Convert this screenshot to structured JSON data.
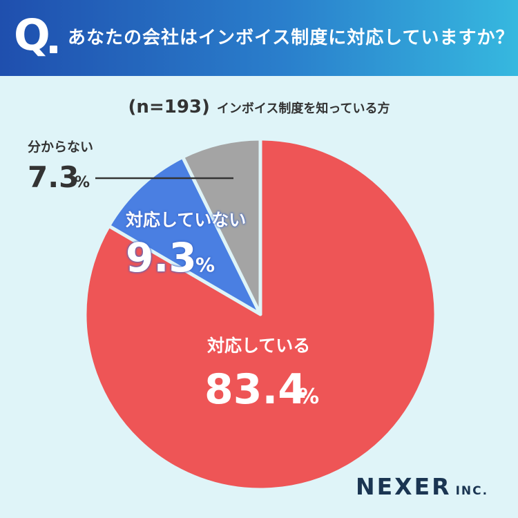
{
  "header": {
    "q_mark": "Q",
    "question": "あなたの会社はインボイス制度に対応していますか？"
  },
  "subtitle": {
    "sample": "(n=193)",
    "text": "インボイス制度を知っている方"
  },
  "chart_data": {
    "type": "pie",
    "start_angle_deg": 0,
    "direction": "clockwise",
    "slices": [
      {
        "label": "対応している",
        "value": 83.4,
        "display": "83.4",
        "unit": "%",
        "color": "#ee5556"
      },
      {
        "label": "対応していない",
        "value": 9.3,
        "display": "9.3",
        "unit": "%",
        "color": "#4a7fe2"
      },
      {
        "label": "分からない",
        "value": 7.3,
        "display": "7.3",
        "unit": "%",
        "color": "#a4a4a4"
      }
    ],
    "separator_color": "#dff4f8"
  },
  "logo": {
    "name": "NEXER",
    "suffix": "INC."
  }
}
